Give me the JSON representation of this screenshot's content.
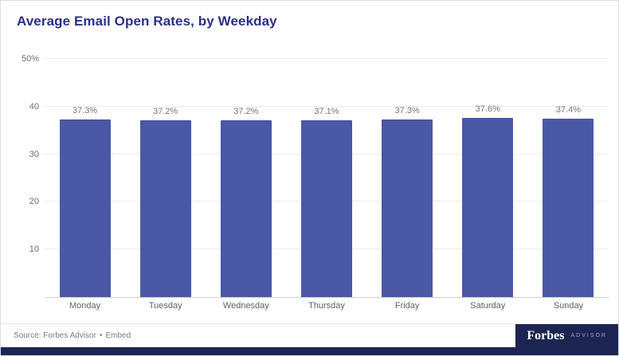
{
  "page": {
    "title": "Average Email Open Rates, by Weekday"
  },
  "chart_data": {
    "type": "bar",
    "title": "Average Email Open Rates, by Weekday",
    "categories": [
      "Monday",
      "Tuesday",
      "Wednesday",
      "Thursday",
      "Friday",
      "Saturday",
      "Sunday"
    ],
    "values": [
      37.3,
      37.2,
      37.2,
      37.1,
      37.3,
      37.6,
      37.4
    ],
    "value_labels": [
      "37.3%",
      "37.2%",
      "37.2%",
      "37.1%",
      "37.3%",
      "37.6%",
      "37.4%"
    ],
    "xlabel": "",
    "ylabel": "",
    "ylim": [
      0,
      50
    ],
    "yticks": [
      {
        "value": 10,
        "label": "10"
      },
      {
        "value": 20,
        "label": "20"
      },
      {
        "value": 30,
        "label": "30"
      },
      {
        "value": 40,
        "label": "40"
      },
      {
        "value": 50,
        "label": "50%"
      }
    ],
    "grid": true,
    "legend": "none",
    "bar_color": "#4a58a5"
  },
  "footer": {
    "source_prefix": "Source: Forbes Advisor",
    "separator": "•",
    "embed_label": "Embed",
    "logo": {
      "brand": "Forbes",
      "sub": "ADVISOR"
    }
  },
  "colors": {
    "title": "#2a3187",
    "bar": "#4a58a5",
    "navy": "#1c2551",
    "gridline": "#ededf2"
  }
}
